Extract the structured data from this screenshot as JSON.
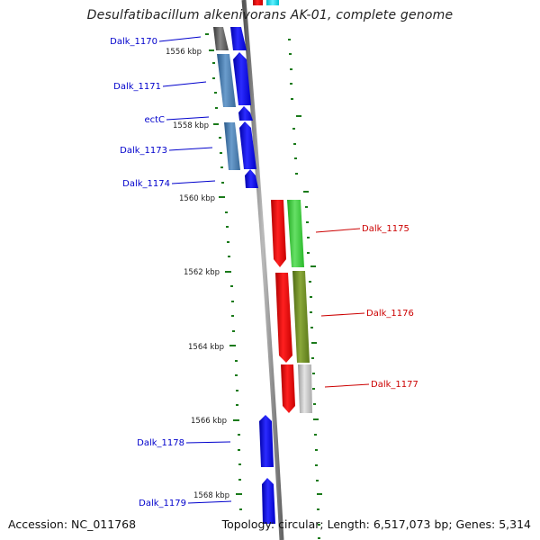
{
  "title": "Desulfatibacillum alkenivorans AK-01, complete genome",
  "footer": {
    "accession": "Accession: NC_011768",
    "topology": "Topology: circular; Length: 6,517,073 bp; Genes: 5,314"
  },
  "colors": {
    "label_left": "#0000cc",
    "label_right": "#cc0000",
    "tick": "#1a7a1a",
    "backbone": "#888888"
  },
  "scale_labels": [
    "1556 kbp",
    "1558 kbp",
    "1560 kbp",
    "1562 kbp",
    "1564 kbp",
    "1566 kbp",
    "1568 kbp"
  ],
  "genes_left": [
    {
      "name": "Dalk_1170"
    },
    {
      "name": "Dalk_1171"
    },
    {
      "name": "ectC"
    },
    {
      "name": "Dalk_1173"
    },
    {
      "name": "Dalk_1174"
    },
    {
      "name": "Dalk_1178"
    },
    {
      "name": "Dalk_1179"
    }
  ],
  "genes_right": [
    {
      "name": "Dalk_1175"
    },
    {
      "name": "Dalk_1176"
    },
    {
      "name": "Dalk_1177"
    }
  ]
}
